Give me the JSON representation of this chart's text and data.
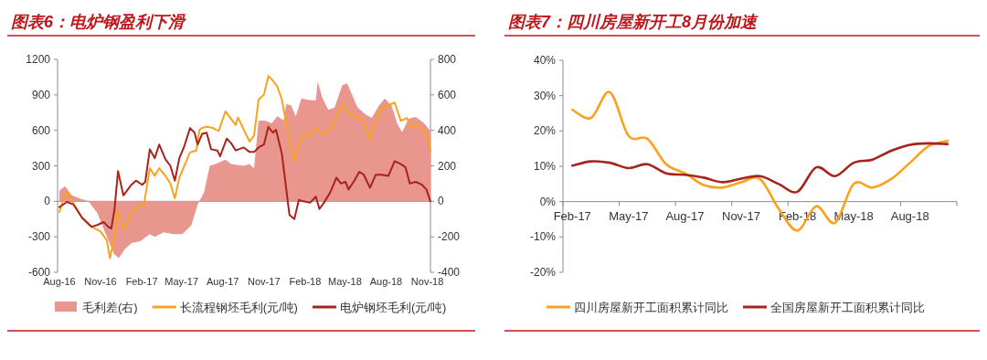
{
  "chart_data": [
    {
      "type": "line",
      "title": "图表6：电炉钢盈利下滑",
      "xlim": [
        "2016-07-28",
        "2018-11-08"
      ],
      "xticks": [
        {
          "value": "2016-08-01",
          "label": "Aug-16"
        },
        {
          "value": "2016-11-01",
          "label": "Nov-16"
        },
        {
          "value": "2017-02-01",
          "label": "Feb-17"
        },
        {
          "value": "2017-05-01",
          "label": "May-17"
        },
        {
          "value": "2017-08-01",
          "label": "Aug-17"
        },
        {
          "value": "2017-11-01",
          "label": "Nov-17"
        },
        {
          "value": "2018-02-01",
          "label": "Feb-18"
        },
        {
          "value": "2018-05-01",
          "label": "May-18"
        },
        {
          "value": "2018-08-01",
          "label": "Aug-18"
        },
        {
          "value": "2018-11-01",
          "label": "Nov-18"
        }
      ],
      "ylim": [
        -600,
        1200
      ],
      "yticks": [
        -600,
        -300,
        0,
        300,
        600,
        900,
        1200
      ],
      "y2lim": [
        -400,
        800
      ],
      "y2ticks": [
        -400,
        -200,
        0,
        200,
        400,
        600,
        800
      ],
      "legend": "bottom",
      "series": [
        {
          "name": "毛利差(右)",
          "type": "area",
          "axis": "y2",
          "color": "#e9968f",
          "x": [
            "2016-08-01",
            "2016-08-14",
            "2016-08-28",
            "2016-09-14",
            "2016-10-05",
            "2016-10-25",
            "2016-11-15",
            "2016-12-02",
            "2016-12-12",
            "2016-12-25",
            "2017-01-09",
            "2017-01-29",
            "2017-02-19",
            "2017-03-02",
            "2017-03-22",
            "2017-04-12",
            "2017-05-03",
            "2017-05-23",
            "2017-06-06",
            "2017-06-20",
            "2017-07-03",
            "2017-07-16",
            "2017-08-07",
            "2017-08-20",
            "2017-09-17",
            "2017-09-30",
            "2017-10-10",
            "2017-10-20",
            "2017-11-04",
            "2017-11-18",
            "2017-12-01",
            "2017-12-15",
            "2017-12-21",
            "2018-01-01",
            "2018-01-11",
            "2018-01-24",
            "2018-02-12",
            "2018-02-25",
            "2018-03-01",
            "2018-03-12",
            "2018-03-25",
            "2018-04-08",
            "2018-04-25",
            "2018-05-06",
            "2018-05-16",
            "2018-05-29",
            "2018-06-16",
            "2018-06-30",
            "2018-07-16",
            "2018-07-29",
            "2018-08-13",
            "2018-08-27",
            "2018-09-06",
            "2018-09-20",
            "2018-10-06",
            "2018-10-23",
            "2018-11-04",
            "2018-11-08"
          ],
          "values": [
            60,
            85,
            35,
            17,
            0,
            -67,
            -200,
            -300,
            -320,
            -270,
            -235,
            -225,
            -185,
            -200,
            -175,
            -185,
            -185,
            -135,
            -17,
            50,
            200,
            210,
            235,
            210,
            200,
            210,
            185,
            455,
            455,
            440,
            480,
            455,
            547,
            540,
            480,
            580,
            570,
            570,
            675,
            580,
            515,
            530,
            655,
            665,
            605,
            530,
            490,
            470,
            540,
            580,
            540,
            430,
            390,
            465,
            475,
            445,
            410,
            390
          ]
        },
        {
          "name": "长流程钢坯毛利(元/吨)",
          "color": "#f9a21f",
          "x": [
            "2016-08-01",
            "2016-08-14",
            "2016-08-21",
            "2016-09-01",
            "2016-09-21",
            "2016-10-12",
            "2016-11-01",
            "2016-11-15",
            "2016-11-22",
            "2016-12-02",
            "2016-12-08",
            "2016-12-18",
            "2016-12-25",
            "2017-01-09",
            "2017-01-22",
            "2017-02-06",
            "2017-02-19",
            "2017-03-02",
            "2017-03-12",
            "2017-03-26",
            "2017-04-06",
            "2017-04-16",
            "2017-04-26",
            "2017-05-06",
            "2017-05-20",
            "2017-06-03",
            "2017-06-10",
            "2017-06-16",
            "2017-06-26",
            "2017-07-10",
            "2017-07-23",
            "2017-08-07",
            "2017-08-20",
            "2017-08-30",
            "2017-09-04",
            "2017-09-17",
            "2017-09-30",
            "2017-10-10",
            "2017-10-20",
            "2017-11-01",
            "2017-11-11",
            "2017-11-21",
            "2017-12-01",
            "2017-12-11",
            "2017-12-21",
            "2018-01-01",
            "2018-01-08",
            "2018-01-18",
            "2018-01-28",
            "2018-02-12",
            "2018-02-25",
            "2018-03-08",
            "2018-03-22",
            "2018-04-05",
            "2018-04-18",
            "2018-04-28",
            "2018-05-09",
            "2018-05-22",
            "2018-06-06",
            "2018-06-16",
            "2018-06-26",
            "2018-07-09",
            "2018-07-22",
            "2018-08-06",
            "2018-08-20",
            "2018-09-03",
            "2018-09-16",
            "2018-09-26",
            "2018-10-10",
            "2018-10-23",
            "2018-11-04",
            "2018-11-08"
          ],
          "values": [
            -90,
            65,
            75,
            -15,
            -140,
            -215,
            -255,
            -330,
            -480,
            -305,
            -75,
            -200,
            -230,
            -90,
            -50,
            -25,
            280,
            215,
            280,
            215,
            150,
            25,
            200,
            290,
            415,
            430,
            605,
            620,
            630,
            620,
            595,
            760,
            695,
            645,
            710,
            605,
            505,
            555,
            860,
            900,
            1060,
            1020,
            970,
            860,
            655,
            440,
            340,
            480,
            570,
            555,
            630,
            570,
            580,
            645,
            785,
            820,
            745,
            720,
            705,
            630,
            520,
            680,
            785,
            810,
            835,
            680,
            705,
            630,
            645,
            605,
            530,
            417
          ]
        },
        {
          "name": "电炉钢坯毛利(元/吨)",
          "color": "#a8231c",
          "x": [
            "2016-08-01",
            "2016-08-18",
            "2016-09-01",
            "2016-09-21",
            "2016-10-12",
            "2016-10-25",
            "2016-11-08",
            "2016-11-18",
            "2016-11-25",
            "2016-12-02",
            "2016-12-10",
            "2016-12-22",
            "2017-01-09",
            "2017-01-19",
            "2017-02-02",
            "2017-02-09",
            "2017-02-19",
            "2017-03-02",
            "2017-03-12",
            "2017-03-26",
            "2017-04-06",
            "2017-04-16",
            "2017-04-26",
            "2017-05-06",
            "2017-05-20",
            "2017-05-30",
            "2017-06-06",
            "2017-06-16",
            "2017-06-26",
            "2017-07-06",
            "2017-07-20",
            "2017-07-26",
            "2017-08-10",
            "2017-08-20",
            "2017-08-30",
            "2017-09-17",
            "2017-09-30",
            "2017-10-10",
            "2017-10-20",
            "2017-11-01",
            "2017-11-11",
            "2017-11-21",
            "2017-11-28",
            "2017-12-11",
            "2017-12-21",
            "2017-12-28",
            "2018-01-08",
            "2018-01-18",
            "2018-01-28",
            "2018-02-12",
            "2018-02-25",
            "2018-03-05",
            "2018-03-15",
            "2018-03-29",
            "2018-04-12",
            "2018-04-22",
            "2018-05-02",
            "2018-05-09",
            "2018-05-22",
            "2018-06-02",
            "2018-06-12",
            "2018-06-26",
            "2018-07-09",
            "2018-07-22",
            "2018-08-06",
            "2018-08-20",
            "2018-09-03",
            "2018-09-13",
            "2018-09-23",
            "2018-10-06",
            "2018-10-20",
            "2018-10-30",
            "2018-11-08"
          ],
          "values": [
            -50,
            -5,
            -25,
            -140,
            -215,
            -200,
            -175,
            -215,
            -230,
            -75,
            255,
            50,
            140,
            175,
            140,
            165,
            440,
            365,
            480,
            355,
            300,
            175,
            365,
            455,
            620,
            580,
            480,
            570,
            580,
            440,
            430,
            380,
            530,
            490,
            430,
            455,
            417,
            417,
            455,
            480,
            630,
            580,
            605,
            405,
            100,
            -115,
            -150,
            12,
            0,
            -12,
            40,
            -65,
            -12,
            75,
            200,
            150,
            165,
            100,
            175,
            250,
            225,
            115,
            225,
            225,
            215,
            340,
            315,
            290,
            150,
            165,
            140,
            100,
            0
          ]
        }
      ]
    },
    {
      "type": "line",
      "title": "图表7：四川房屋新开工8月份加速",
      "categories": [
        "Feb-17",
        null,
        null,
        "May-17",
        null,
        null,
        "Aug-17",
        null,
        null,
        "Nov-17",
        null,
        null,
        "Feb-18",
        null,
        null,
        "May-18",
        null,
        null,
        "Aug-18",
        null,
        null
      ],
      "ylim": [
        -20,
        40
      ],
      "yticks": [
        {
          "value": -20,
          "label": "-20%"
        },
        {
          "value": -10,
          "label": "-10%"
        },
        {
          "value": 0,
          "label": "0%"
        },
        {
          "value": 10,
          "label": "10%"
        },
        {
          "value": 20,
          "label": "20%"
        },
        {
          "value": 30,
          "label": "30%"
        },
        {
          "value": 40,
          "label": "40%"
        }
      ],
      "legend": "bottom",
      "series": [
        {
          "name": "四川房屋新开工面积累计同比",
          "color": "#f9a21f",
          "values": [
            26,
            23.7,
            31,
            18.6,
            17.8,
            10.6,
            8,
            4.7,
            4,
            5.5,
            6.4,
            -2,
            -8.2,
            -1.3,
            -6,
            5,
            4,
            6.4,
            11,
            15.7,
            17.2
          ]
        },
        {
          "name": "全国房屋新开工面积累计同比",
          "color": "#a8231c",
          "values": [
            10.2,
            11.4,
            11,
            9.5,
            10.6,
            8,
            7.6,
            6.8,
            5.5,
            6.5,
            7.2,
            5,
            2.8,
            9.7,
            7.2,
            11,
            11.9,
            14.4,
            16.1,
            16.5,
            16.3
          ]
        }
      ]
    }
  ]
}
